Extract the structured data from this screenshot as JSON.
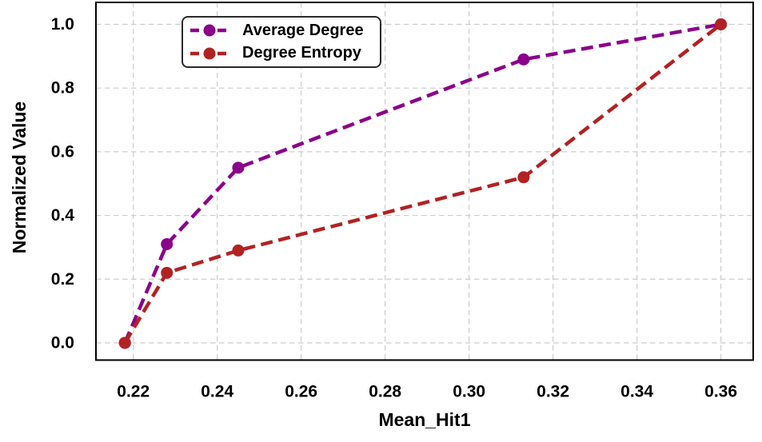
{
  "figure": {
    "background": "#ffffff"
  },
  "chart_data": {
    "type": "line",
    "title": "",
    "xlabel": "Mean_Hit1",
    "ylabel": "Normalized Value",
    "x": [
      0.218,
      0.228,
      0.245,
      0.313,
      0.36
    ],
    "series": [
      {
        "name": "Average Degree",
        "color": "#8B008B",
        "values": [
          0.0,
          0.31,
          0.55,
          0.89,
          1.0
        ]
      },
      {
        "name": "Degree Entropy",
        "color": "#B22222",
        "values": [
          0.0,
          0.22,
          0.29,
          0.52,
          1.0
        ]
      }
    ],
    "line_style": "dashed",
    "marker": "circle",
    "xlim": [
      0.2111,
      0.3677
    ],
    "ylim": [
      -0.054,
      1.069
    ],
    "xticks": {
      "values": [
        0.22,
        0.24,
        0.26,
        0.28,
        0.3,
        0.32,
        0.34,
        0.36
      ],
      "labels": [
        "0.22",
        "0.24",
        "0.26",
        "0.28",
        "0.30",
        "0.32",
        "0.34",
        "0.36"
      ]
    },
    "yticks": {
      "values": [
        0.0,
        0.2,
        0.4,
        0.6,
        0.8,
        1.0
      ],
      "labels": [
        "0.0",
        "0.2",
        "0.4",
        "0.6",
        "0.8",
        "1.0"
      ]
    },
    "grid": true,
    "grid_color": "#cccccc",
    "axis_color": "#000000",
    "legend": {
      "position": "upper-left-inside",
      "entries": [
        "Average Degree",
        "Degree Entropy"
      ]
    }
  }
}
